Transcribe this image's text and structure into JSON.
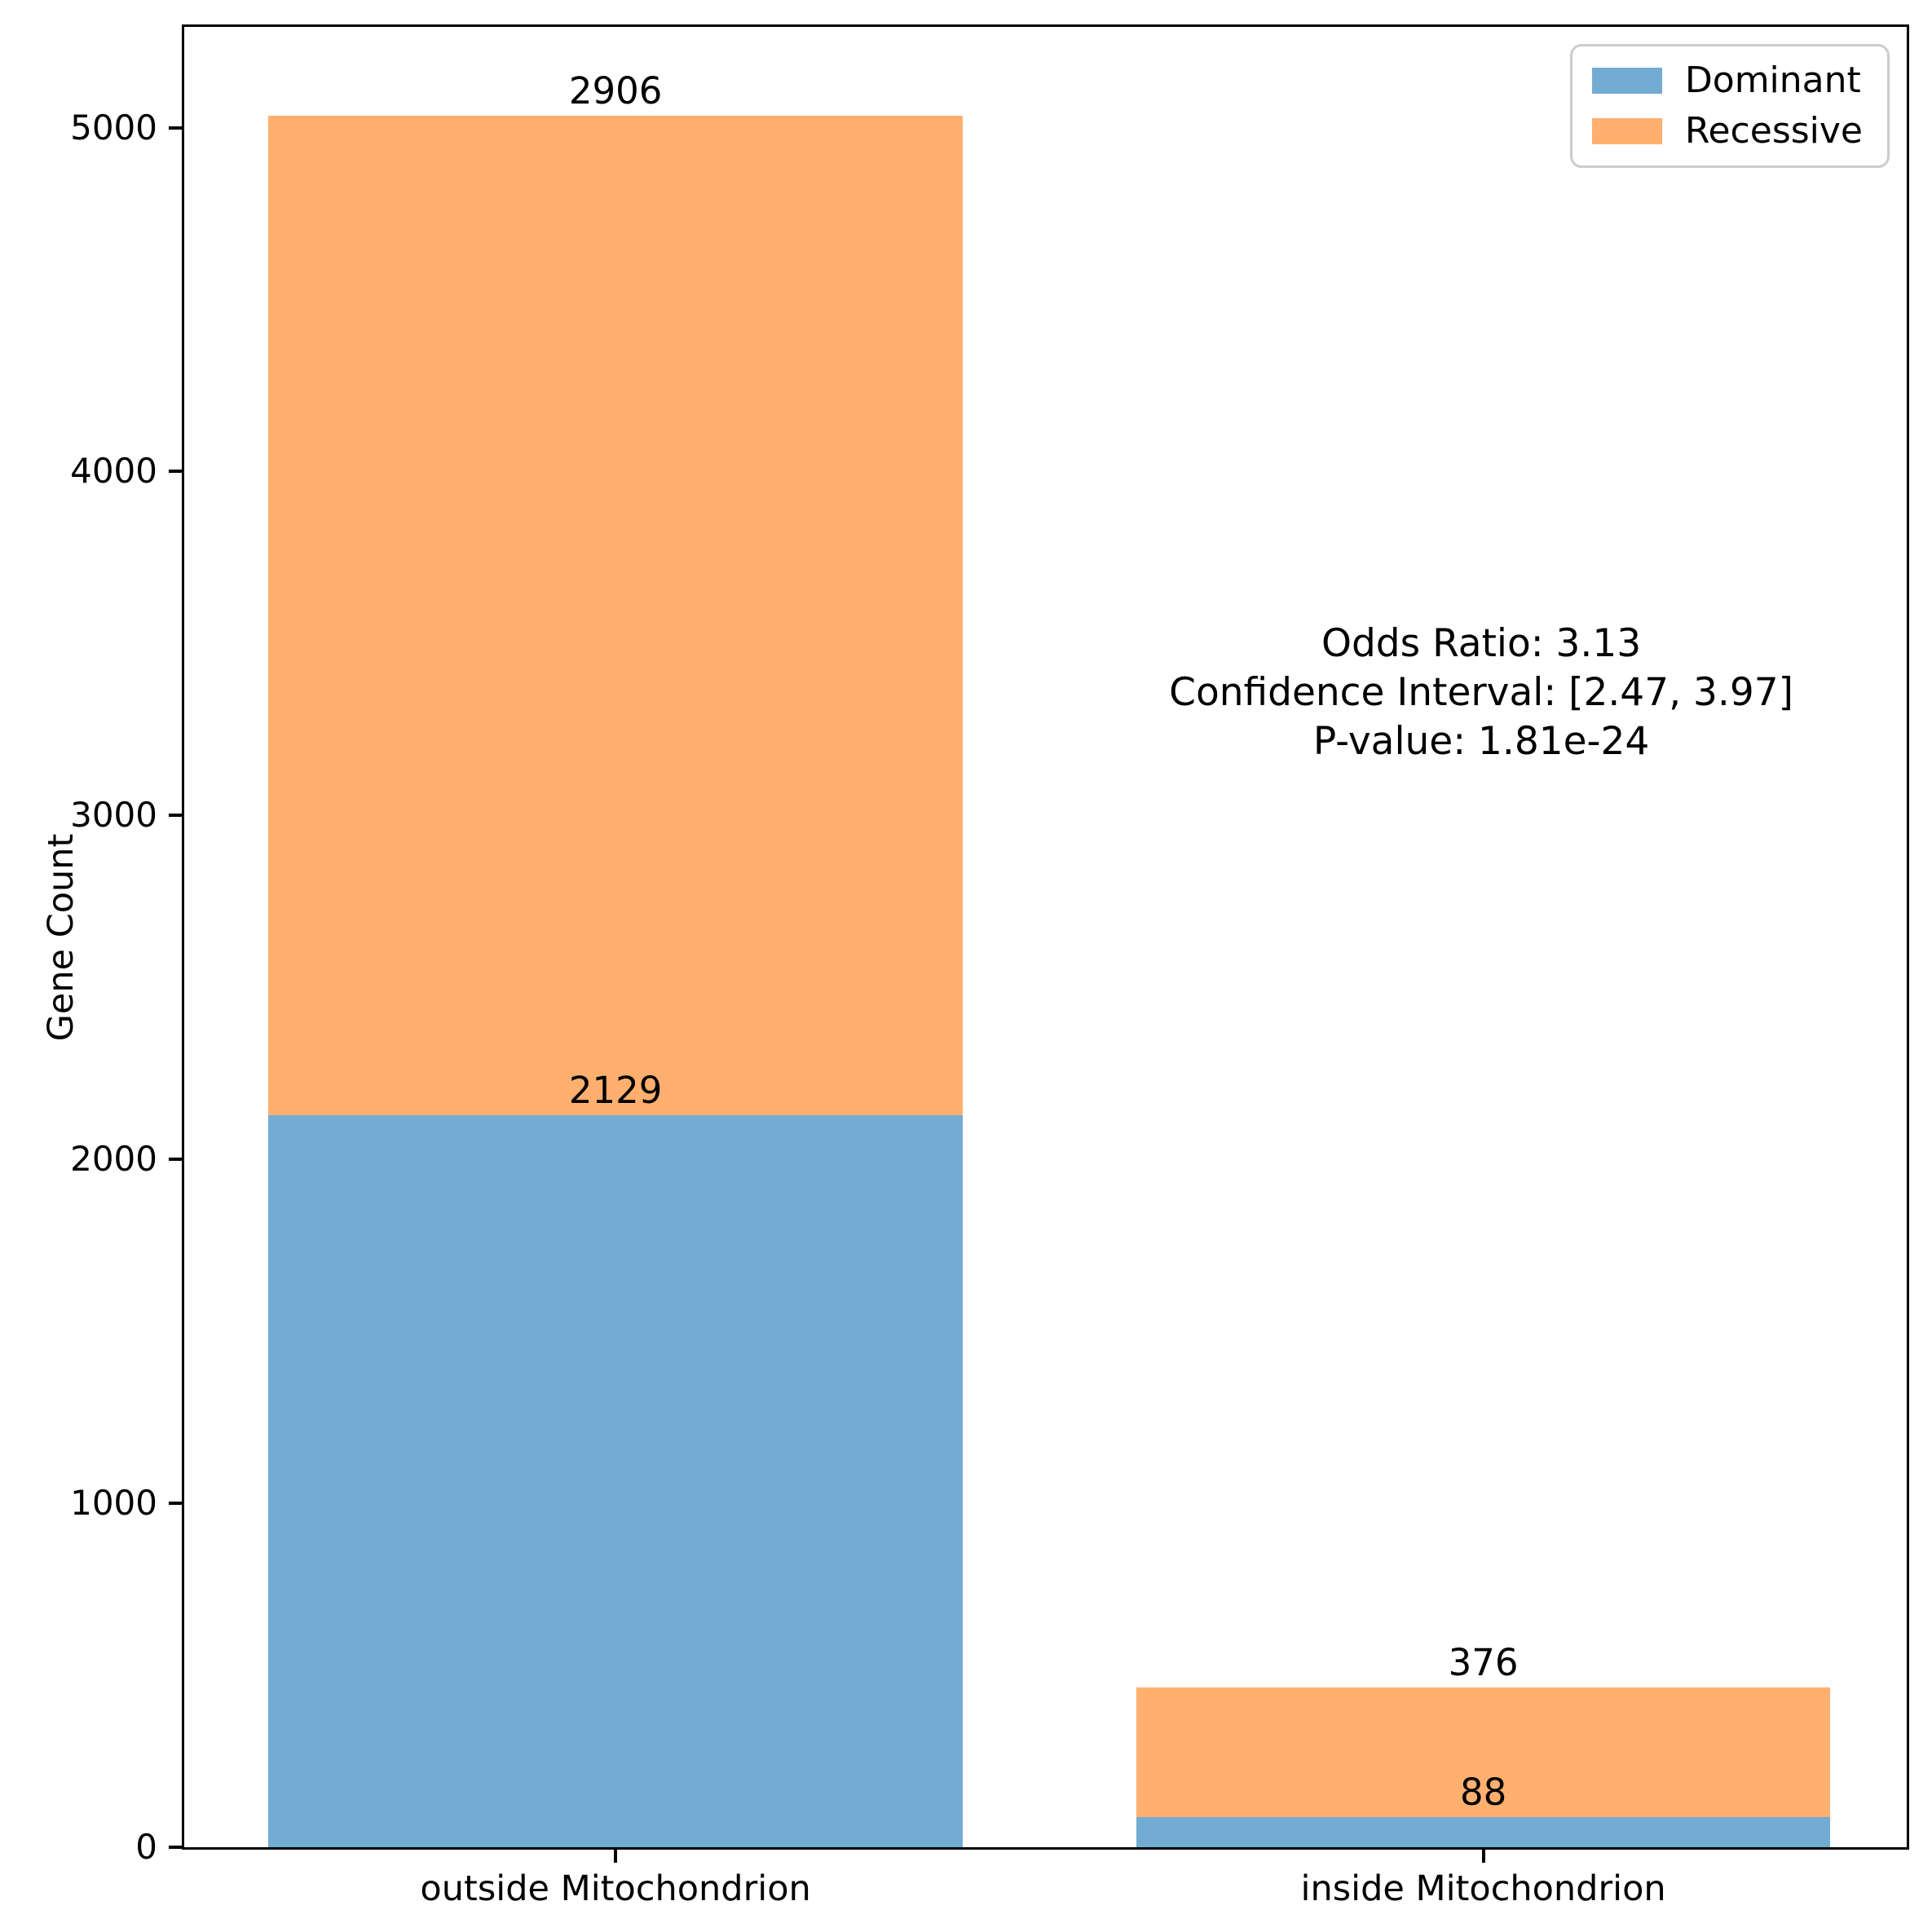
{
  "chart_data": {
    "type": "bar",
    "stacked": true,
    "ylabel": "Gene Count",
    "categories": [
      "outside Mitochondrion",
      "inside Mitochondrion"
    ],
    "category_centers_pct": [
      25.04,
      75.42
    ],
    "bar_width_pct": 40.3,
    "series": [
      {
        "name": "Dominant",
        "color": "#73ACD2",
        "values": [
          2129,
          88
        ]
      },
      {
        "name": "Recessive",
        "color": "#FFB06E",
        "values": [
          2906,
          376
        ]
      }
    ],
    "value_labels": [
      [
        "2129",
        "88"
      ],
      [
        "2906",
        "376"
      ]
    ],
    "yticks": [
      0,
      1000,
      2000,
      3000,
      4000,
      5000
    ],
    "ylim": [
      0,
      5293
    ],
    "grid": false,
    "legend_position": "upper-right",
    "annotation": {
      "line1": "Odds Ratio: 3.13",
      "line2": "Confidence Interval: [2.47, 3.97]",
      "line3": "P-value: 1.81e-24"
    },
    "colors": {
      "dominant": "#73ACD2",
      "recessive": "#FFB06E",
      "spine": "#000000",
      "text": "#000000",
      "legend_border": "#cccccc"
    }
  }
}
